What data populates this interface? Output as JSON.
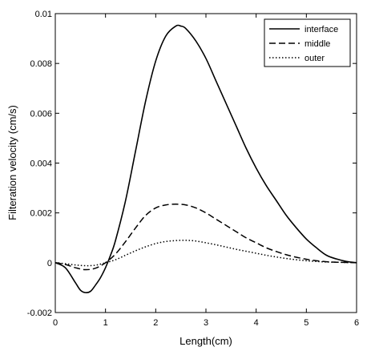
{
  "chart_data": {
    "type": "line",
    "title": "",
    "xlabel": "Length(cm)",
    "ylabel": "Filteration velocity (cm/s)",
    "xlim": [
      0,
      6
    ],
    "ylim": [
      -0.002,
      0.01
    ],
    "xticks": [
      0,
      1,
      2,
      3,
      4,
      5,
      6
    ],
    "xtick_labels": [
      "0",
      "1",
      "2",
      "3",
      "4",
      "5",
      "6"
    ],
    "yticks": [
      -0.002,
      0,
      0.002,
      0.004,
      0.006,
      0.008,
      0.01
    ],
    "ytick_labels": [
      "-0.002",
      "0",
      "0.002",
      "0.004",
      "0.006",
      "0.008",
      "0.01"
    ],
    "grid": false,
    "legend_position": "top-right",
    "series": [
      {
        "name": "interface",
        "style": "solid",
        "x": [
          0,
          0.2,
          0.4,
          0.5,
          0.6,
          0.7,
          0.8,
          0.9,
          1.0,
          1.1,
          1.2,
          1.4,
          1.6,
          1.8,
          2.0,
          2.2,
          2.4,
          2.5,
          2.6,
          2.8,
          3.0,
          3.2,
          3.4,
          3.6,
          3.8,
          4.0,
          4.2,
          4.4,
          4.6,
          4.8,
          5.0,
          5.2,
          5.4,
          5.6,
          5.8,
          6.0
        ],
        "y": [
          0,
          -0.0002,
          -0.0008,
          -0.0011,
          -0.0012,
          -0.00115,
          -0.0009,
          -0.0006,
          -0.0002,
          0.0003,
          0.0009,
          0.0025,
          0.0045,
          0.0065,
          0.0081,
          0.0091,
          0.0095,
          0.0095,
          0.0094,
          0.0089,
          0.0082,
          0.0073,
          0.0064,
          0.0055,
          0.0046,
          0.0038,
          0.0031,
          0.0025,
          0.0019,
          0.0014,
          0.00095,
          0.0006,
          0.0003,
          0.00015,
          5e-05,
          0
        ]
      },
      {
        "name": "middle",
        "style": "dashed",
        "x": [
          0,
          0.2,
          0.4,
          0.6,
          0.8,
          1.0,
          1.2,
          1.4,
          1.6,
          1.8,
          2.0,
          2.2,
          2.4,
          2.6,
          2.8,
          3.0,
          3.2,
          3.4,
          3.6,
          3.8,
          4.0,
          4.2,
          4.4,
          4.6,
          4.8,
          5.0,
          5.2,
          5.4,
          5.6,
          5.8,
          6.0
        ],
        "y": [
          0,
          -7e-05,
          -0.0002,
          -0.00028,
          -0.00022,
          0,
          0.00035,
          0.00085,
          0.0014,
          0.0019,
          0.0022,
          0.00232,
          0.00235,
          0.00232,
          0.0022,
          0.002,
          0.00175,
          0.0015,
          0.00125,
          0.001,
          0.0008,
          0.0006,
          0.00045,
          0.00032,
          0.00022,
          0.00014,
          8e-05,
          4e-05,
          2e-05,
          1e-05,
          0
        ]
      },
      {
        "name": "outer",
        "style": "dotted",
        "x": [
          0,
          0.2,
          0.4,
          0.6,
          0.8,
          1.0,
          1.2,
          1.4,
          1.6,
          1.8,
          2.0,
          2.2,
          2.4,
          2.6,
          2.8,
          3.0,
          3.2,
          3.4,
          3.6,
          3.8,
          4.0,
          4.2,
          4.4,
          4.6,
          4.8,
          5.0,
          5.2,
          5.4,
          5.6,
          5.8,
          6.0
        ],
        "y": [
          0,
          -4e-05,
          -9e-05,
          -0.00012,
          -0.0001,
          0,
          0.00012,
          0.0003,
          0.00048,
          0.00064,
          0.00077,
          0.00085,
          0.00089,
          0.0009,
          0.00087,
          0.0008,
          0.00072,
          0.00063,
          0.00054,
          0.00046,
          0.00038,
          0.0003,
          0.00023,
          0.00017,
          0.00012,
          8e-05,
          5e-05,
          3e-05,
          2e-05,
          1e-05,
          0
        ]
      }
    ]
  }
}
